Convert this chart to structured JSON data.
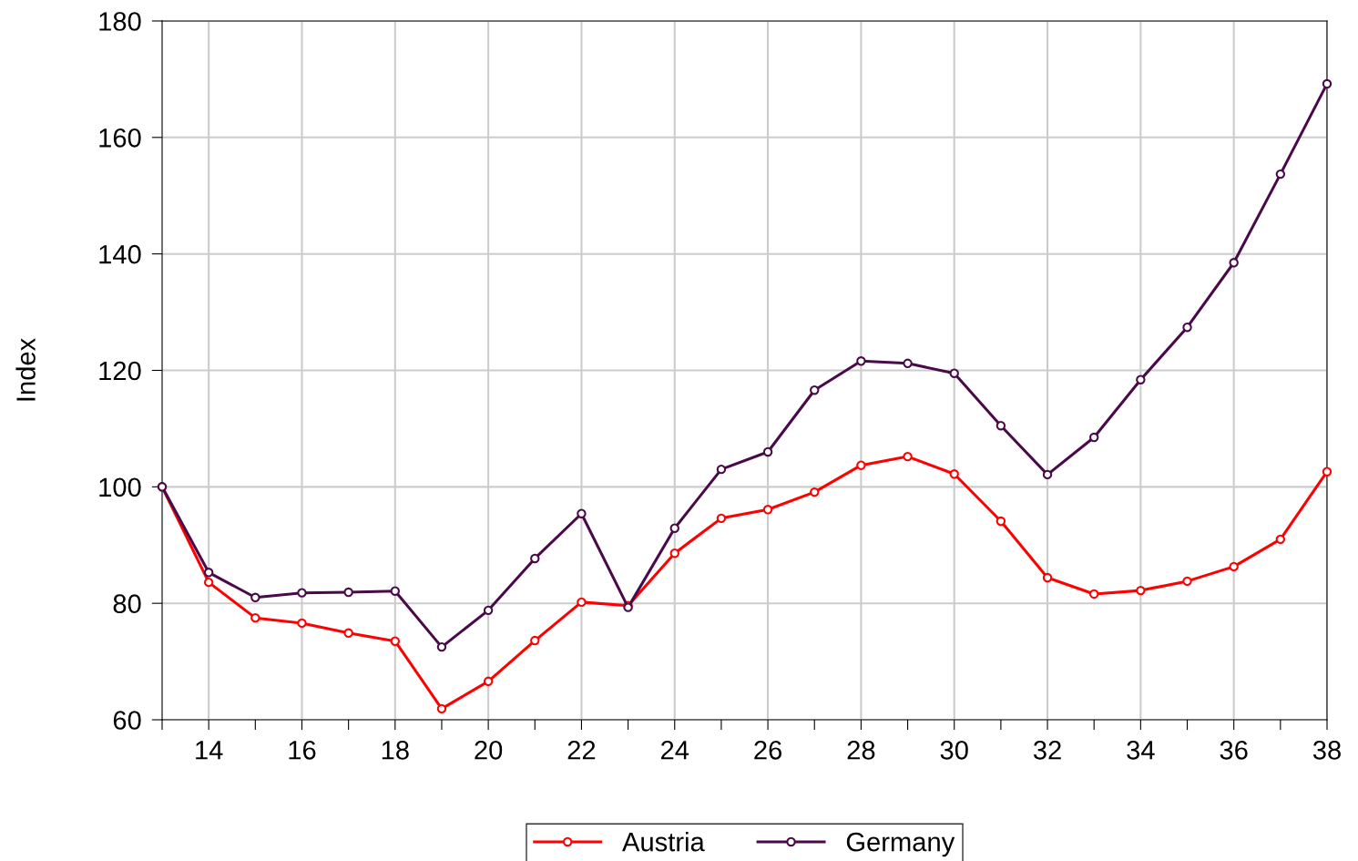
{
  "chart_data": {
    "type": "line",
    "ylabel": "Index",
    "x": [
      13,
      14,
      15,
      16,
      17,
      18,
      19,
      20,
      21,
      22,
      23,
      24,
      25,
      26,
      27,
      28,
      29,
      30,
      31,
      32,
      33,
      34,
      35,
      36,
      37,
      38
    ],
    "series": [
      {
        "name": "Austria",
        "color": "#ff0000",
        "values": [
          100,
          83.6,
          77.5,
          76.6,
          74.9,
          73.5,
          61.9,
          66.6,
          73.6,
          80.2,
          79.6,
          88.6,
          94.6,
          96.1,
          99.1,
          103.7,
          105.2,
          102.2,
          94.1,
          84.4,
          81.6,
          82.2,
          83.8,
          86.3,
          91.0,
          102.6
        ]
      },
      {
        "name": "Germany",
        "color": "#4a0a4a",
        "values": [
          100,
          85.3,
          81.0,
          81.8,
          81.9,
          82.1,
          72.5,
          78.8,
          87.7,
          95.4,
          79.3,
          92.9,
          103.0,
          106.0,
          116.6,
          121.6,
          121.2,
          119.5,
          110.5,
          102.1,
          108.5,
          118.4,
          127.4,
          138.5,
          153.7,
          169.2
        ]
      }
    ],
    "xlim": [
      13,
      38
    ],
    "xticks": [
      {
        "value": 13,
        "label": null
      },
      14,
      {
        "value": 15,
        "label": null
      },
      16,
      {
        "value": 17,
        "label": null
      },
      18,
      {
        "value": 19,
        "label": null
      },
      20,
      {
        "value": 21,
        "label": null
      },
      22,
      {
        "value": 23,
        "label": null
      },
      24,
      {
        "value": 25,
        "label": null
      },
      26,
      {
        "value": 27,
        "label": null
      },
      28,
      {
        "value": 29,
        "label": null
      },
      30,
      {
        "value": 31,
        "label": null
      },
      32,
      {
        "value": 33,
        "label": null
      },
      34,
      {
        "value": 35,
        "label": null
      },
      36,
      {
        "value": 37,
        "label": null
      },
      38
    ],
    "ylim": [
      60,
      180
    ],
    "yticks": [
      60,
      80,
      100,
      120,
      140,
      160,
      180
    ],
    "grid": true,
    "legend": "bottom",
    "marker": "circle",
    "line_style": "solid"
  }
}
